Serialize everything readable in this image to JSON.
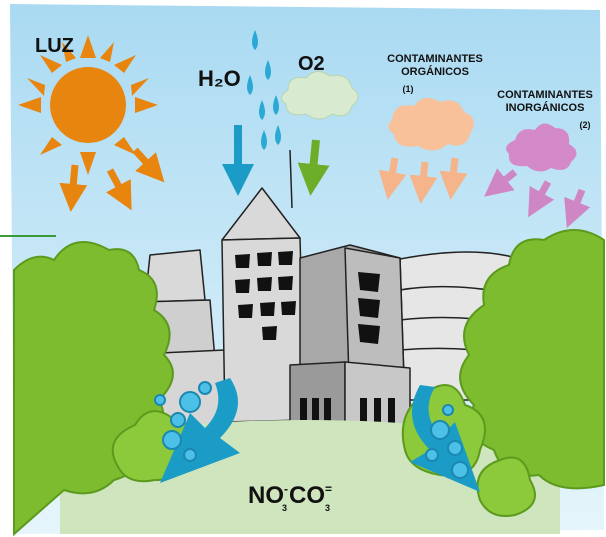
{
  "labels": {
    "light": "LUZ",
    "water": "H₂O",
    "oxygen": "O2",
    "organic": {
      "line1": "CONTAMINANTES",
      "line2": "ORGÁNICOS",
      "note": "(1)"
    },
    "inorganic": {
      "line1": "CONTAMINANTES",
      "line2": "INORGÁNICOS",
      "note": "(2)"
    },
    "products": [
      {
        "base": "NO",
        "charge": "-",
        "sub": "3"
      },
      {
        "base": "CO",
        "charge": "=",
        "sub": "3"
      }
    ]
  }
}
